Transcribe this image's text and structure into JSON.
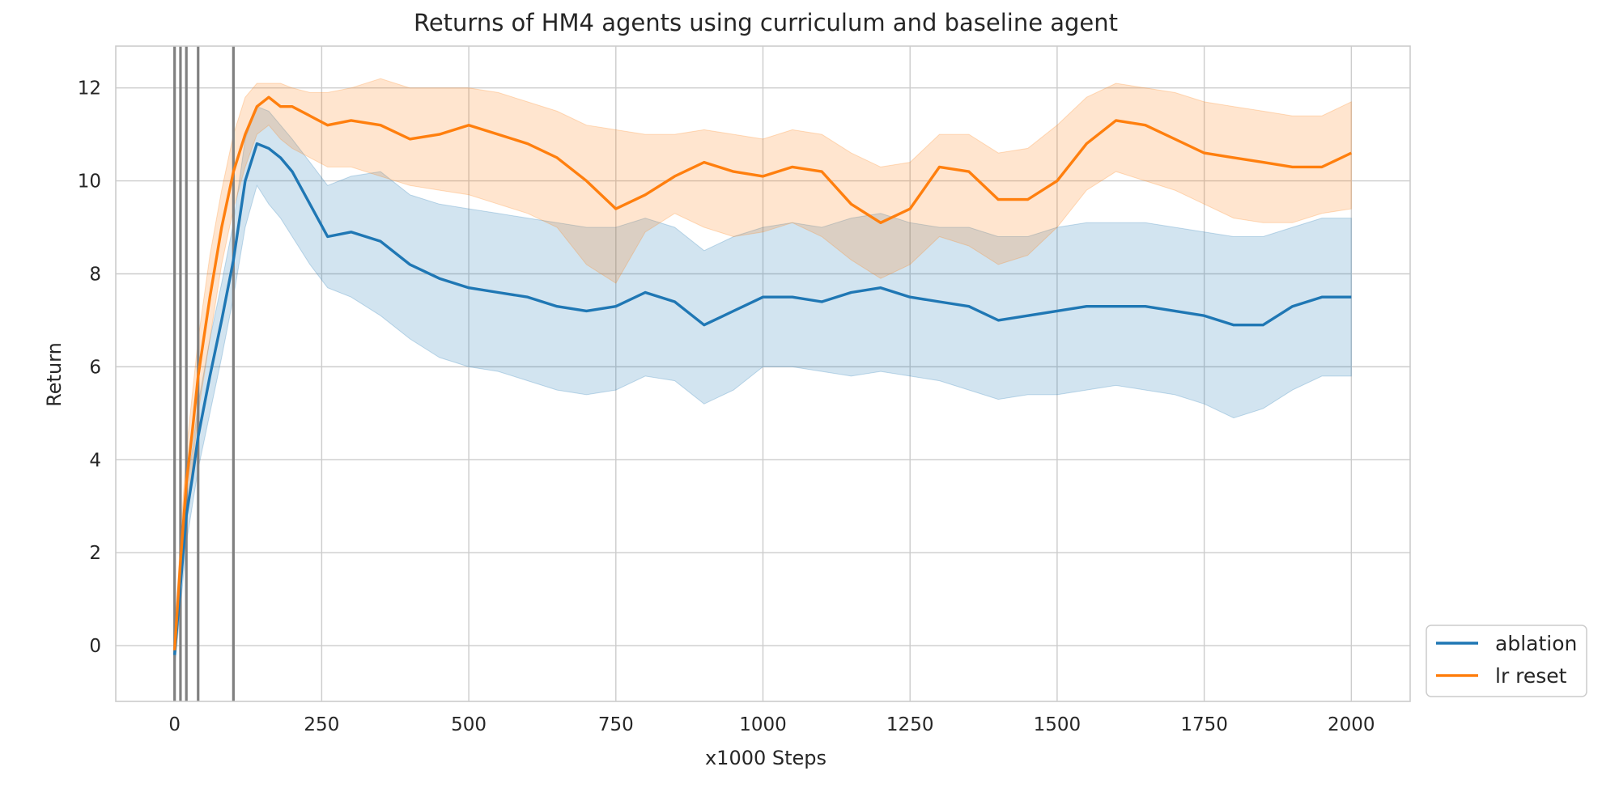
{
  "chart_data": {
    "type": "line",
    "title": "Returns of HM4 agents using curriculum and baseline agent",
    "xlabel": "x1000 Steps",
    "ylabel": "Return",
    "xlim": [
      -100,
      2100
    ],
    "ylim": [
      -1.2,
      12.9
    ],
    "xticks": [
      0,
      250,
      500,
      750,
      1000,
      1250,
      1500,
      1750,
      2000
    ],
    "yticks": [
      0,
      2,
      4,
      6,
      8,
      10,
      12
    ],
    "grid": true,
    "legend_position": "lower-right, outside plot",
    "vlines": [
      0,
      10,
      20,
      40,
      100
    ],
    "series": [
      {
        "name": "ablation",
        "color": "#1f77b4",
        "x": [
          0,
          10,
          20,
          30,
          40,
          60,
          80,
          100,
          120,
          140,
          160,
          180,
          200,
          230,
          260,
          300,
          350,
          400,
          450,
          500,
          550,
          600,
          650,
          700,
          750,
          800,
          850,
          900,
          950,
          1000,
          1050,
          1100,
          1150,
          1200,
          1250,
          1300,
          1350,
          1400,
          1450,
          1500,
          1550,
          1600,
          1650,
          1700,
          1750,
          1800,
          1850,
          1900,
          1950,
          2000
        ],
        "y": [
          -0.2,
          1.3,
          2.8,
          3.6,
          4.5,
          5.8,
          7.0,
          8.3,
          10.0,
          10.8,
          10.7,
          10.5,
          10.2,
          9.5,
          8.8,
          8.9,
          8.7,
          8.2,
          7.9,
          7.7,
          7.6,
          7.5,
          7.3,
          7.2,
          7.3,
          7.6,
          7.4,
          6.9,
          7.2,
          7.5,
          7.5,
          7.4,
          7.6,
          7.7,
          7.5,
          7.4,
          7.3,
          7.0,
          7.1,
          7.2,
          7.3,
          7.3,
          7.3,
          7.2,
          7.1,
          6.9,
          6.9,
          7.3,
          7.5,
          7.5
        ],
        "lower": [
          -0.5,
          0.8,
          2.2,
          3.0,
          3.8,
          5.0,
          6.2,
          7.5,
          9.0,
          9.9,
          9.5,
          9.2,
          8.8,
          8.2,
          7.7,
          7.5,
          7.1,
          6.6,
          6.2,
          6.0,
          5.9,
          5.7,
          5.5,
          5.4,
          5.5,
          5.8,
          5.7,
          5.2,
          5.5,
          6.0,
          6.0,
          5.9,
          5.8,
          5.9,
          5.8,
          5.7,
          5.5,
          5.3,
          5.4,
          5.4,
          5.5,
          5.6,
          5.5,
          5.4,
          5.2,
          4.9,
          5.1,
          5.5,
          5.8,
          5.8
        ],
        "upper": [
          0.1,
          1.8,
          3.4,
          4.2,
          5.2,
          6.6,
          7.8,
          9.1,
          10.9,
          11.6,
          11.5,
          11.2,
          10.9,
          10.4,
          9.9,
          10.1,
          10.2,
          9.7,
          9.5,
          9.4,
          9.3,
          9.2,
          9.1,
          9.0,
          9.0,
          9.2,
          9.0,
          8.5,
          8.8,
          9.0,
          9.1,
          9.0,
          9.2,
          9.3,
          9.1,
          9.0,
          9.0,
          8.8,
          8.8,
          9.0,
          9.1,
          9.1,
          9.1,
          9.0,
          8.9,
          8.8,
          8.8,
          9.0,
          9.2,
          9.2
        ]
      },
      {
        "name": "lr reset",
        "color": "#ff7f0e",
        "x": [
          0,
          10,
          20,
          30,
          40,
          60,
          80,
          100,
          120,
          140,
          160,
          180,
          200,
          230,
          260,
          300,
          350,
          400,
          450,
          500,
          550,
          600,
          650,
          700,
          750,
          800,
          850,
          900,
          950,
          1000,
          1050,
          1100,
          1150,
          1200,
          1250,
          1300,
          1350,
          1400,
          1450,
          1500,
          1550,
          1600,
          1650,
          1700,
          1750,
          1800,
          1850,
          1900,
          1950,
          2000
        ],
        "y": [
          -0.1,
          1.8,
          3.5,
          4.6,
          5.8,
          7.5,
          9.0,
          10.2,
          11.0,
          11.6,
          11.8,
          11.6,
          11.6,
          11.4,
          11.2,
          11.3,
          11.2,
          10.9,
          11.0,
          11.2,
          11.0,
          10.8,
          10.5,
          10.0,
          9.4,
          9.7,
          10.1,
          10.4,
          10.2,
          10.1,
          10.3,
          10.2,
          9.5,
          9.1,
          9.4,
          10.3,
          10.2,
          9.6,
          9.6,
          10.0,
          10.8,
          11.3,
          11.2,
          10.9,
          10.6,
          10.5,
          10.4,
          10.3,
          10.3,
          10.6
        ],
        "lower": [
          -0.4,
          1.2,
          2.8,
          3.8,
          5.0,
          6.6,
          8.2,
          9.4,
          10.3,
          11.0,
          11.2,
          10.9,
          10.7,
          10.5,
          10.3,
          10.3,
          10.1,
          9.9,
          9.8,
          9.7,
          9.5,
          9.3,
          9.0,
          8.2,
          7.8,
          8.9,
          9.3,
          9.0,
          8.8,
          8.9,
          9.1,
          8.8,
          8.3,
          7.9,
          8.2,
          8.8,
          8.6,
          8.2,
          8.4,
          9.0,
          9.8,
          10.2,
          10.0,
          9.8,
          9.5,
          9.2,
          9.1,
          9.1,
          9.3,
          9.4
        ],
        "upper": [
          0.2,
          2.3,
          4.2,
          5.4,
          6.6,
          8.4,
          9.8,
          11.0,
          11.8,
          12.1,
          12.1,
          12.1,
          12.0,
          11.9,
          11.9,
          12.0,
          12.2,
          12.0,
          12.0,
          12.0,
          11.9,
          11.7,
          11.5,
          11.2,
          11.1,
          11.0,
          11.0,
          11.1,
          11.0,
          10.9,
          11.1,
          11.0,
          10.6,
          10.3,
          10.4,
          11.0,
          11.0,
          10.6,
          10.7,
          11.2,
          11.8,
          12.1,
          12.0,
          11.9,
          11.7,
          11.6,
          11.5,
          11.4,
          11.4,
          11.7
        ]
      }
    ]
  }
}
